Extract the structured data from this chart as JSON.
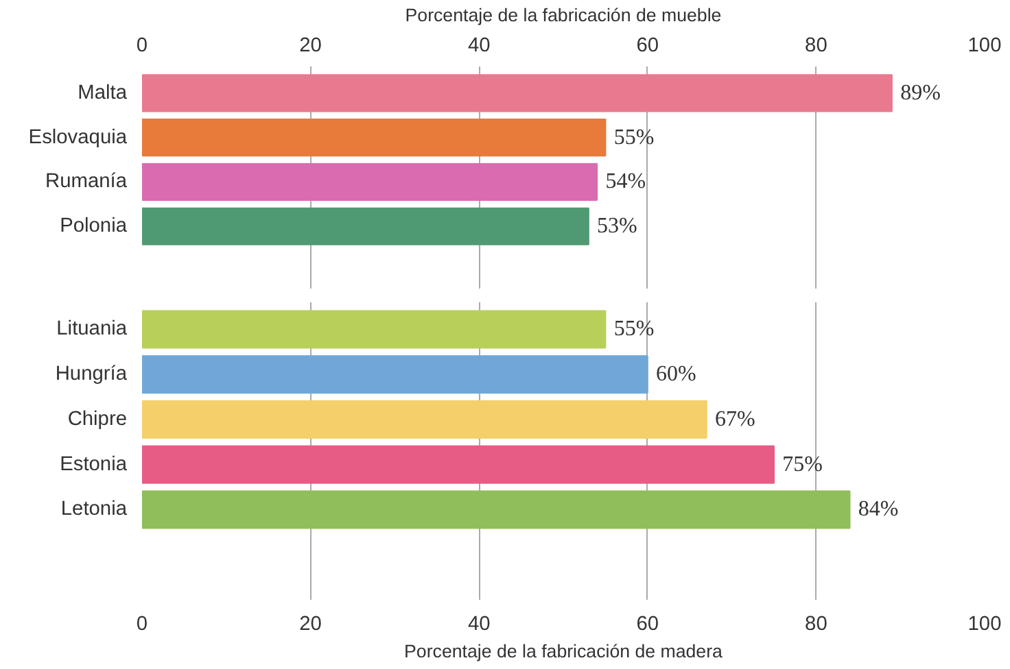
{
  "chart_data": [
    {
      "type": "bar",
      "orientation": "horizontal",
      "xlabel": "Porcentaje de la fabricación de mueble",
      "categories": [
        "Malta",
        "Eslovaquia",
        "Rumanía",
        "Polonia"
      ],
      "values": [
        89,
        55,
        54,
        53
      ],
      "colors": [
        "#e8798f",
        "#e87a3a",
        "#d96cb0",
        "#4f9a72"
      ],
      "value_labels": [
        "89%",
        "55%",
        "54%",
        "53%"
      ],
      "xlim": [
        0,
        100
      ],
      "xticks": [
        0,
        20,
        40,
        60,
        80,
        100
      ],
      "grid": "x"
    },
    {
      "type": "bar",
      "orientation": "horizontal",
      "xlabel": "Porcentaje de la fabricación de madera",
      "categories": [
        "Lituania",
        "Hungría",
        "Chipre",
        "Estonia",
        "Letonia"
      ],
      "values": [
        55,
        60,
        67,
        75,
        84
      ],
      "colors": [
        "#b8cf5a",
        "#6fa8d8",
        "#f5cf6a",
        "#e65c85",
        "#8fbe5a"
      ],
      "value_labels": [
        "55%",
        "60%",
        "67%",
        "75%",
        "84%"
      ],
      "xlim": [
        0,
        100
      ],
      "xticks": [
        0,
        20,
        40,
        60,
        80,
        100
      ],
      "grid": "x"
    }
  ]
}
